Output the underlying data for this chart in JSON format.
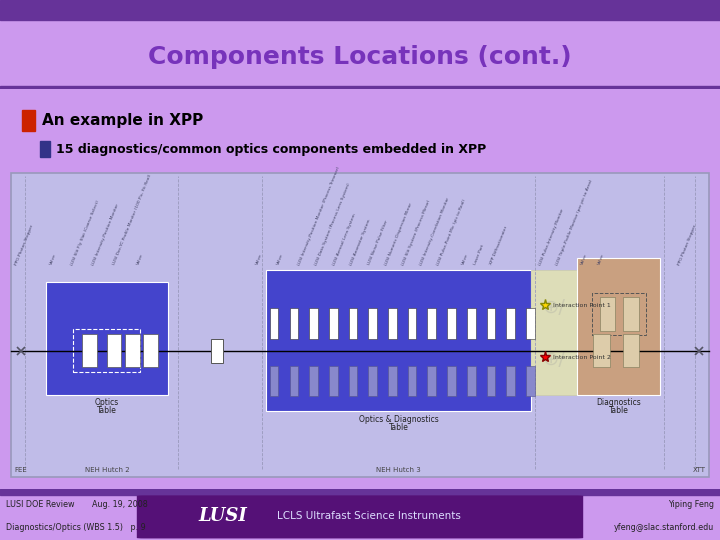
{
  "title": "Components Locations (cont.)",
  "title_color": "#7733bb",
  "title_fontsize": 18,
  "slide_bg": "#cc99ee",
  "header_bg": "#dd99ee",
  "header_bar_color": "#663399",
  "content_bg": "#e8d8f0",
  "bullet1": "An example in XPP",
  "bullet1_color": "#cc2200",
  "bullet2": "15 diagnostics/common optics components embedded in XPP",
  "bullet2_color": "#333388",
  "diagram_bg": "#c0bce8",
  "diagram_border": "#9999bb",
  "optics_table_color": "#4444cc",
  "optics_diag_table_color": "#4444cc",
  "diag_table_color": "#c9a080",
  "white_strip_color": "#eeeecc",
  "footer_bg": "#cc99ee",
  "footer_banner_color": "#551177",
  "footer_text_left1": "LUSI DOE Review       Aug. 19, 2008",
  "footer_text_left2": "Diagnostics/Optics (WBS 1.5)   p. 9",
  "footer_lusi_text": "LCLS Ultrafast Science Instruments",
  "footer_lusi_label": "LUSI",
  "footer_right1": "Yiping Feng",
  "footer_right2": "yfeng@slac.stanford.edu",
  "diag_labels": [
    [
      0.01,
      "PPG Photon Stopper"
    ],
    [
      0.06,
      "Valve"
    ],
    [
      0.09,
      "LUSI Slit Fly Slat (Coarse Select)"
    ],
    [
      0.12,
      "LUSI Intensity-Position Monitor"
    ],
    [
      0.15,
      "LUSI Doc-YC Profile Monitor (100 Pic, Fit Real)"
    ],
    [
      0.185,
      "Valve"
    ],
    [
      0.355,
      "Valve"
    ],
    [
      0.385,
      "Valve"
    ],
    [
      0.415,
      "LUSI Intensity-Position Monitor (Process Trimmer)"
    ],
    [
      0.44,
      "LUSI Data System (Process Lens System)"
    ],
    [
      0.465,
      "LUSI Aerosol Lens System"
    ],
    [
      0.49,
      "LUSI Anomator System"
    ],
    [
      0.515,
      "LUSI Noise Pulse Filter"
    ],
    [
      0.54,
      "LUSI Numeric Dispersion Mirror"
    ],
    [
      0.565,
      "LUSI Slit System (Process Mirror)"
    ],
    [
      0.59,
      "LUSI Intensity-Correlation Monitor"
    ],
    [
      0.615,
      "LUSI Pulse-Point Mic (pic to Real)"
    ],
    [
      0.65,
      "Valve"
    ],
    [
      0.668,
      "Laser Port"
    ],
    [
      0.69,
      "XPP Diffractionater"
    ],
    [
      0.76,
      "LUSI Pulse-Intensity Monitor"
    ],
    [
      0.785,
      "LUSI Triple-Profile Monitor (per pic to Area)"
    ],
    [
      0.82,
      "Valve"
    ],
    [
      0.845,
      "Valve"
    ],
    [
      0.96,
      "PPG Photon Stopper"
    ]
  ]
}
